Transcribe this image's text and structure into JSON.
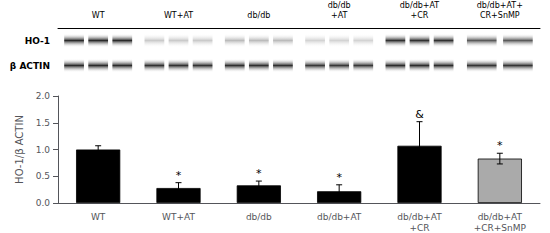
{
  "chart_data": [
    {
      "type": "heatmap",
      "categories": [
        "WT",
        "WT+AT",
        "db/db",
        "db/db\n+AT",
        "db/db+AT\n+CR",
        "db/db+AT+\nCR+SnMP"
      ],
      "rows": [
        "HO-1",
        "β ACTIN"
      ],
      "cells": [
        [
          0.88,
          0.22,
          0.28,
          0.18,
          0.85,
          0.68
        ],
        [
          0.88,
          0.85,
          0.86,
          0.82,
          0.87,
          0.84
        ]
      ],
      "lanes": [
        3,
        3,
        3,
        3,
        3,
        2
      ],
      "grid": false
    },
    {
      "type": "bar",
      "categories": [
        "WT",
        "WT+AT",
        "db/db",
        "db/db+AT",
        "db/db+AT\n+CR",
        "db/db+AT\n+CR+SnMP"
      ],
      "values": [
        1.0,
        0.28,
        0.33,
        0.22,
        1.07,
        0.83
      ],
      "errors": [
        0.07,
        0.1,
        0.08,
        0.12,
        0.45,
        0.1
      ],
      "colors": [
        "#000000",
        "#000000",
        "#000000",
        "#000000",
        "#000000",
        "#aaaaaa"
      ],
      "ylabel": "HO-1/β ACTIN",
      "ylim": [
        0,
        2.0
      ],
      "yticks": [
        {
          "value": 0,
          "label": "0.0"
        },
        0.5,
        {
          "value": 1.0,
          "label": "1.0"
        },
        1.5,
        {
          "value": 2.0,
          "label": "2.0"
        }
      ],
      "annotations": [
        {
          "x": "WT+AT",
          "text": "*"
        },
        {
          "x": "db/db",
          "text": "*"
        },
        {
          "x": "db/db+AT",
          "text": "*"
        },
        {
          "x": "db/db+AT\n+CR+SnMP",
          "text": "*"
        },
        {
          "x": "db/db+AT\n+CR",
          "text": "&"
        }
      ],
      "grid": false
    }
  ]
}
